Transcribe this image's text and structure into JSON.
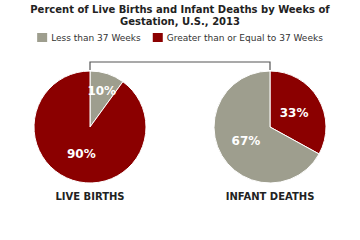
{
  "title": "Percent of Live Births and Infant Deaths by Weeks of Gestation, U.S., 2013",
  "chart_data": [
    {
      "type": "pie",
      "title": "LIVE BIRTHS",
      "categories": [
        "Less than 37 Weeks",
        "Greater than or Equal to 37 Weeks"
      ],
      "values": [
        10,
        90
      ],
      "value_labels": [
        "10%",
        "90%"
      ],
      "colors": [
        "#9e9e8e",
        "#8b0000"
      ],
      "data_labels": true,
      "legend": "top"
    },
    {
      "type": "pie",
      "title": "INFANT DEATHS",
      "categories": [
        "Greater than or Equal to 37 Weeks",
        "Less than 37 Weeks"
      ],
      "values": [
        33,
        67
      ],
      "value_labels": [
        "33%",
        "67%"
      ],
      "colors": [
        "#8b0000",
        "#9e9e8e"
      ],
      "data_labels": true
    }
  ]
}
